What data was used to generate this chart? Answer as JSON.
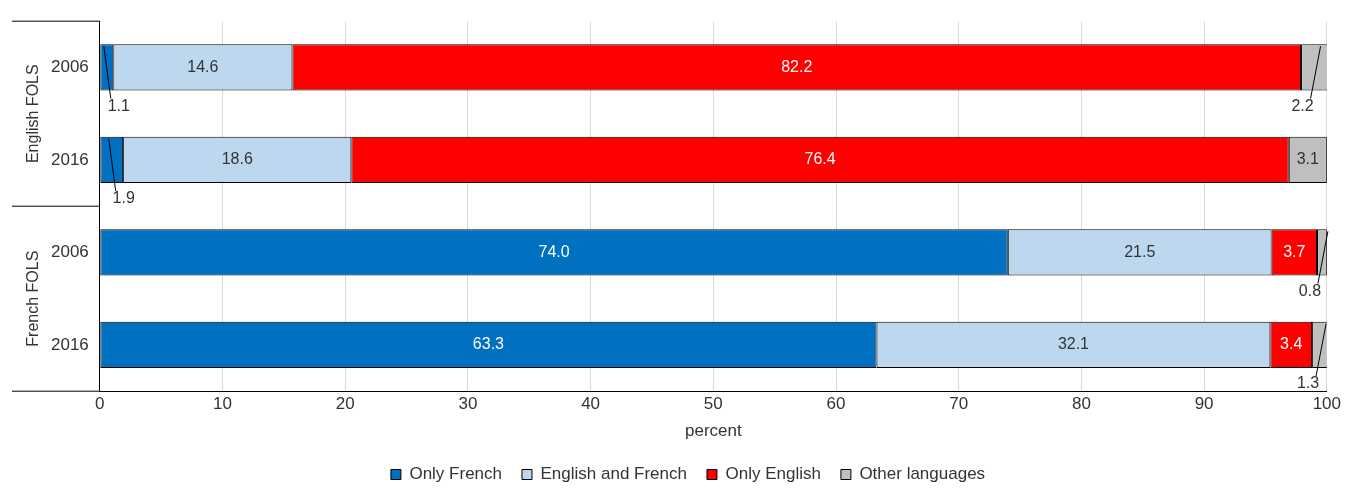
{
  "chart_data": {
    "type": "bar",
    "orientation": "horizontal",
    "stacked": true,
    "xlabel": "percent",
    "categories": [
      "2006",
      "2016",
      "2006",
      "2016"
    ],
    "annotations": [
      "English FOLS",
      "French FOLS"
    ],
    "series": [
      {
        "name": "Only French",
        "color": "#0070c0",
        "values": [
          1.1,
          1.9,
          74.0,
          63.3
        ],
        "value_labels": [
          "1.1",
          "1.9",
          "74.0",
          "63.3"
        ]
      },
      {
        "name": "English and French",
        "color": "#bdd7ee",
        "values": [
          14.6,
          18.6,
          21.5,
          32.1
        ],
        "value_labels": [
          "14.6",
          "18.6",
          "21.5",
          "32.1"
        ]
      },
      {
        "name": "Only English",
        "color": "#ff0000",
        "values": [
          82.2,
          76.4,
          3.7,
          3.4
        ],
        "value_labels": [
          "82.2",
          "76.4",
          "3.7",
          "3.4"
        ]
      },
      {
        "name": "Other languages",
        "color": "#bfbfbf",
        "values": [
          2.2,
          3.1,
          0.8,
          1.3
        ],
        "value_labels": [
          "2.2",
          "3.1",
          "0.8",
          "1.3"
        ]
      }
    ],
    "xlim": [
      0,
      100
    ],
    "xticks": [
      0,
      10,
      20,
      30,
      40,
      50,
      60,
      70,
      80,
      90,
      100
    ],
    "grid": "x",
    "legend": "bottom"
  }
}
